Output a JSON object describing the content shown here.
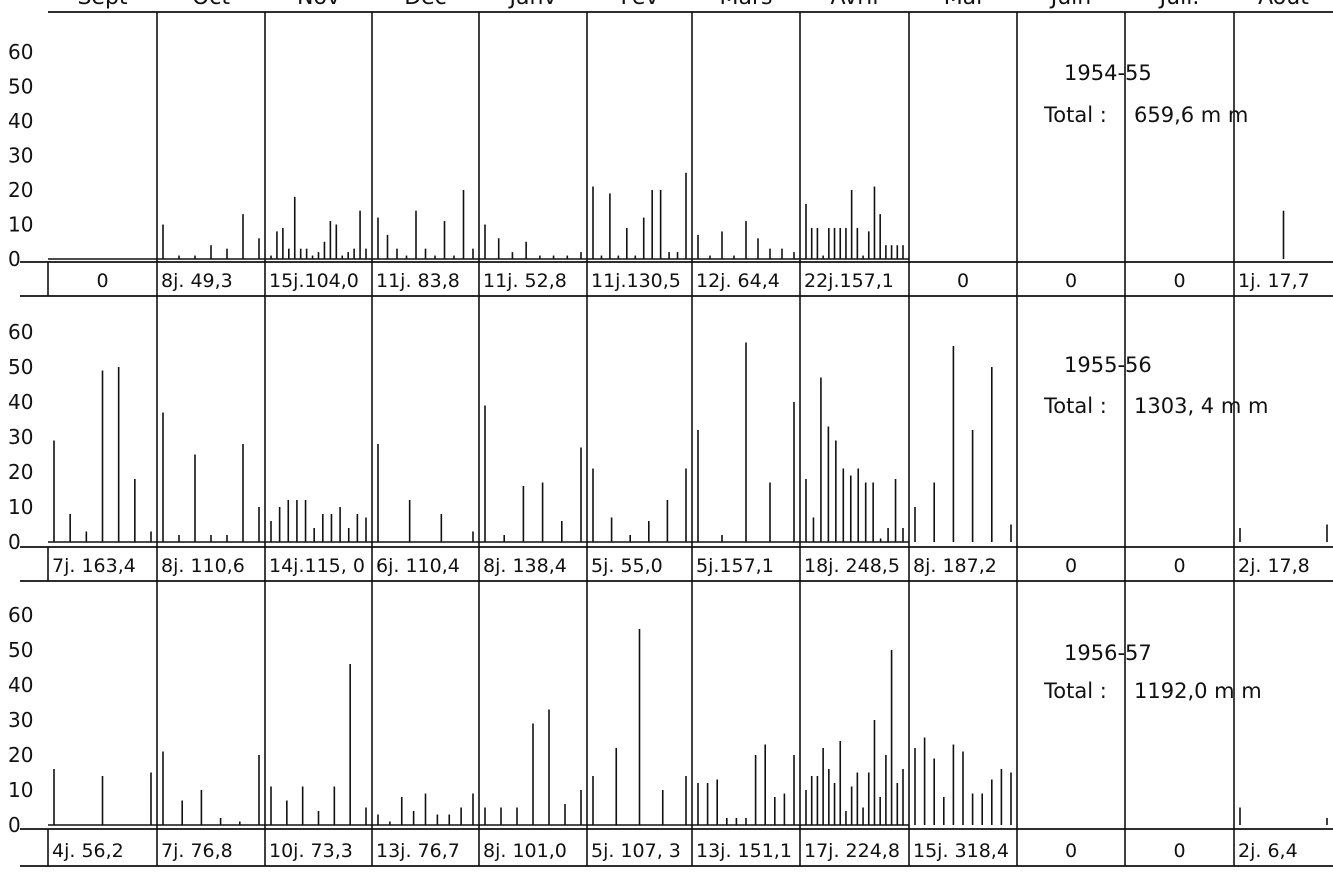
{
  "chart_data": {
    "type": "bar",
    "months": [
      "Sept",
      "Oct",
      "Nov",
      "Dec",
      "Janv",
      "Fev",
      "Mars",
      "Avril",
      "Mai",
      "Juin",
      "Juil.",
      "Aout"
    ],
    "y_ticks": [
      "0",
      "10",
      "20",
      "30",
      "40",
      "50",
      "60"
    ],
    "ylim": [
      0,
      60
    ],
    "grid": false,
    "panels": [
      {
        "season": "1954-55",
        "total_label": "Total :",
        "total_value": "659,6 m m",
        "summaries": [
          "0",
          "8j. 49,3",
          "15j.104,0",
          "11j. 83,8",
          "11j. 52,8",
          "11j.130,5",
          "12j. 64,4",
          "22j.157,1",
          "0",
          "0",
          "0",
          "1j. 17,7"
        ],
        "bars": [
          [],
          [
            10,
            1,
            1,
            4,
            3,
            13,
            6
          ],
          [
            1,
            8,
            9,
            3,
            18,
            3,
            3,
            1,
            2,
            5,
            11,
            10,
            1,
            2,
            3,
            14,
            3
          ],
          [
            12,
            7,
            3,
            1,
            14,
            3,
            1,
            11,
            1,
            20,
            3
          ],
          [
            10,
            6,
            2,
            5,
            1,
            1,
            1,
            2
          ],
          [
            21,
            1,
            19,
            1,
            9,
            1,
            12,
            20,
            20,
            2,
            2,
            25
          ],
          [
            7,
            1,
            8,
            1,
            11,
            6,
            3,
            3,
            2
          ],
          [
            16,
            9,
            9,
            1,
            9,
            9,
            9,
            9,
            20,
            9,
            1,
            8,
            21,
            13,
            4,
            4,
            4,
            4
          ],
          [],
          [],
          [],
          [
            14
          ]
        ]
      },
      {
        "season": "1955-56",
        "total_label": "Total :",
        "total_value": "1303, 4 m m",
        "summaries": [
          "7j. 163,4",
          "8j. 110,6",
          "14j.115, 0",
          "6j. 110,4",
          "8j. 138,4",
          "5j. 55,0",
          "5j.157,1",
          "18j. 248,5",
          "8j. 187,2",
          "0",
          "0",
          "2j. 17,8"
        ],
        "bars": [
          [
            29,
            8,
            3,
            49,
            50,
            18,
            3
          ],
          [
            37,
            2,
            25,
            2,
            2,
            28,
            10
          ],
          [
            6,
            10,
            12,
            12,
            12,
            4,
            8,
            8,
            10,
            4,
            8,
            7
          ],
          [
            28,
            12,
            8,
            3
          ],
          [
            39,
            2,
            16,
            17,
            6,
            27
          ],
          [
            21,
            7,
            2,
            6,
            12,
            21
          ],
          [
            32,
            2,
            57,
            17,
            40
          ],
          [
            18,
            7,
            47,
            33,
            29,
            21,
            19,
            21,
            17,
            17,
            1,
            4,
            18,
            4
          ],
          [
            10,
            17,
            56,
            32,
            50,
            5
          ],
          [],
          [],
          [
            4,
            5
          ]
        ]
      },
      {
        "season": "1956-57",
        "total_label": "Total :",
        "total_value": "1192,0 m m",
        "summaries": [
          "4j. 56,2",
          "7j. 76,8",
          "10j. 73,3",
          "13j. 76,7",
          "8j. 101,0",
          "5j. 107, 3",
          "13j. 151,1",
          "17j. 224,8",
          "15j. 318,4",
          "0",
          "0",
          "2j. 6,4"
        ],
        "bars": [
          [
            16,
            14,
            15
          ],
          [
            21,
            7,
            10,
            2,
            1,
            20
          ],
          [
            11,
            7,
            11,
            4,
            11,
            46,
            5
          ],
          [
            3,
            1,
            8,
            4,
            9,
            3,
            3,
            5,
            9
          ],
          [
            5,
            5,
            5,
            29,
            33,
            6,
            10
          ],
          [
            14,
            22,
            56,
            10,
            14
          ],
          [
            12,
            12,
            13,
            2,
            2,
            2,
            20,
            23,
            8,
            9,
            20
          ],
          [
            10,
            14,
            14,
            22,
            16,
            12,
            24,
            4,
            11,
            15,
            5,
            15,
            30,
            8,
            20,
            50,
            12,
            16
          ],
          [
            22,
            25,
            19,
            8,
            23,
            21,
            9,
            9,
            13,
            16,
            15
          ],
          [],
          [],
          [
            5,
            2
          ]
        ]
      }
    ]
  }
}
